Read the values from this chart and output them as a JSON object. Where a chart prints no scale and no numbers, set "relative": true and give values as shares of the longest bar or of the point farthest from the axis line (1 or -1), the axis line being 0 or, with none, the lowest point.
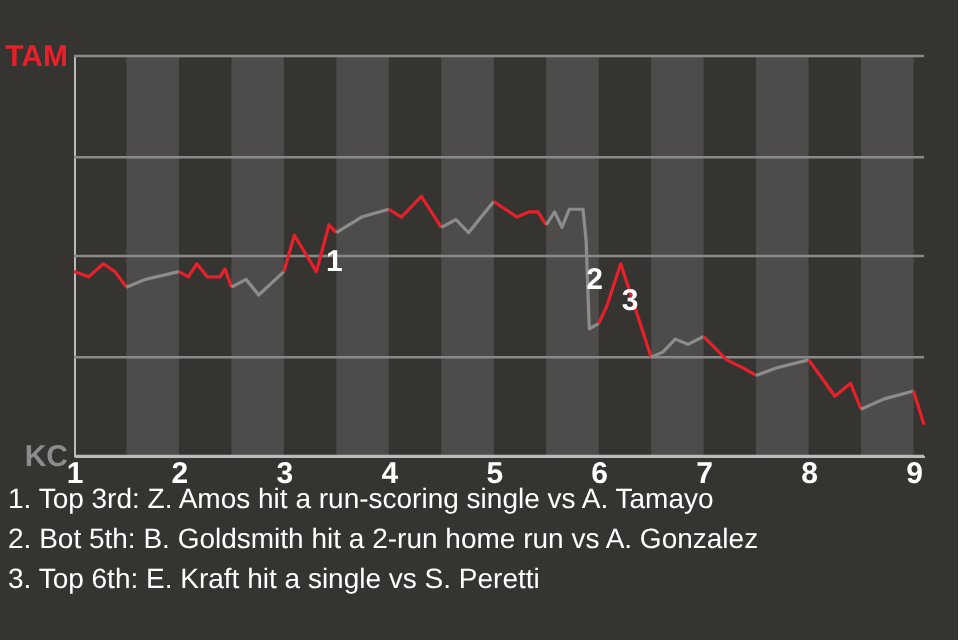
{
  "chart_data": {
    "type": "line",
    "relative": true,
    "xlim": [
      1,
      9.1
    ],
    "xticks": [
      1,
      2,
      3,
      4,
      5,
      6,
      7,
      8,
      9
    ],
    "line_style": "solid",
    "series": [
      {
        "color": "#e8202a",
        "x": [
          1.0,
          1.14,
          1.28,
          1.39,
          1.5
        ],
        "values": [
          0.71,
          0.69,
          0.74,
          0.71,
          0.65
        ]
      },
      {
        "color": "#8c8c8c",
        "x": [
          1.5,
          1.68,
          2.0
        ],
        "values": [
          0.65,
          0.68,
          0.71
        ]
      },
      {
        "color": "#e8202a",
        "x": [
          2.0,
          2.09,
          2.17,
          2.27,
          2.39,
          2.44,
          2.5
        ],
        "values": [
          0.71,
          0.69,
          0.74,
          0.69,
          0.69,
          0.72,
          0.65
        ]
      },
      {
        "color": "#8c8c8c",
        "x": [
          2.5,
          2.64,
          2.76,
          3.0
        ],
        "values": [
          0.65,
          0.68,
          0.62,
          0.71
        ]
      },
      {
        "color": "#e8202a",
        "x": [
          3.0,
          3.1,
          3.31,
          3.43,
          3.5
        ],
        "values": [
          0.71,
          0.85,
          0.71,
          0.89,
          0.86
        ]
      },
      {
        "color": "#8c8c8c",
        "x": [
          3.5,
          3.74,
          4.0
        ],
        "values": [
          0.86,
          0.92,
          0.95
        ]
      },
      {
        "color": "#e8202a",
        "x": [
          4.0,
          4.12,
          4.31,
          4.5
        ],
        "values": [
          0.95,
          0.92,
          1,
          0.88
        ]
      },
      {
        "color": "#8c8c8c",
        "x": [
          4.5,
          4.64,
          4.76,
          5.0
        ],
        "values": [
          0.88,
          0.91,
          0.86,
          0.98
        ]
      },
      {
        "color": "#e8202a",
        "x": [
          5.0,
          5.22,
          5.34,
          5.42,
          5.5
        ],
        "values": [
          0.98,
          0.92,
          0.94,
          0.94,
          0.89
        ]
      },
      {
        "color": "#8c8c8c",
        "x": [
          5.5,
          5.58,
          5.65,
          5.72,
          5.85,
          5.88,
          5.91,
          6.0
        ],
        "values": [
          0.89,
          0.94,
          0.88,
          0.95,
          0.95,
          0.83,
          0.49,
          0.51
        ]
      },
      {
        "color": "#e8202a",
        "x": [
          6.0,
          6.08,
          6.21,
          6.5
        ],
        "values": [
          0.51,
          0.58,
          0.74,
          0.38
        ]
      },
      {
        "color": "#8c8c8c",
        "x": [
          6.5,
          6.61,
          6.73,
          6.85,
          7.0
        ],
        "values": [
          0.38,
          0.4,
          0.45,
          0.43,
          0.46
        ]
      },
      {
        "color": "#e8202a",
        "x": [
          7.0,
          7.22,
          7.37,
          7.5
        ],
        "values": [
          0.46,
          0.37,
          0.34,
          0.31
        ]
      },
      {
        "color": "#8c8c8c",
        "x": [
          7.5,
          7.7,
          8.0
        ],
        "values": [
          0.31,
          0.34,
          0.37
        ]
      },
      {
        "color": "#e8202a",
        "x": [
          8.0,
          8.11,
          8.25,
          8.4,
          8.5
        ],
        "values": [
          0.37,
          0.31,
          0.23,
          0.28,
          0.18
        ]
      },
      {
        "color": "#8c8c8c",
        "x": [
          8.5,
          8.72,
          9.0
        ],
        "values": [
          0.18,
          0.22,
          0.25
        ]
      },
      {
        "color": "#e8202a",
        "x": [
          9.0,
          9.1
        ],
        "values": [
          0.25,
          0.12
        ]
      }
    ],
    "bands": [
      {
        "axis": "x",
        "from": 1.5,
        "to": 2,
        "color": "#4d4c4a"
      },
      {
        "axis": "x",
        "from": 2.5,
        "to": 3,
        "color": "#4d4c4a"
      },
      {
        "axis": "x",
        "from": 3.5,
        "to": 4,
        "color": "#4d4c4a"
      },
      {
        "axis": "x",
        "from": 4.5,
        "to": 5,
        "color": "#4d4c4a"
      },
      {
        "axis": "x",
        "from": 5.5,
        "to": 6,
        "color": "#4d4c4a"
      },
      {
        "axis": "x",
        "from": 6.5,
        "to": 7,
        "color": "#4d4c4a"
      },
      {
        "axis": "x",
        "from": 7.5,
        "to": 8,
        "color": "#4d4c4a"
      },
      {
        "axis": "x",
        "from": 8.5,
        "to": 9,
        "color": "#4d4c4a"
      }
    ],
    "ref_lines": [
      {
        "axis": "y",
        "value": 0,
        "label": "KC",
        "color": "#bbbbbb"
      },
      {
        "axis": "y",
        "value": 0.38,
        "color": "#8a8a8a"
      },
      {
        "axis": "y",
        "value": 0.77,
        "color": "#8a8a8a"
      },
      {
        "axis": "y",
        "value": 1.15,
        "color": "#8a8a8a"
      },
      {
        "axis": "y",
        "value": 1.54,
        "label": "TAM",
        "color": "#8a8a8a"
      }
    ],
    "annotations": [
      {
        "text": "1",
        "x": 3.48,
        "y": 0.75
      },
      {
        "text": "2",
        "x": 5.96,
        "y": 0.68
      },
      {
        "text": "3",
        "x": 6.3,
        "y": 0.6
      },
      "1. Top 3rd: Z. Amos hit a run-scoring single vs A. Tamayo",
      "2. Bot 5th: B. Goldsmith hit a 2-run home run vs A. Gonzalez",
      "3. Top 6th: E. Kraft hit a single vs S. Peretti"
    ]
  }
}
